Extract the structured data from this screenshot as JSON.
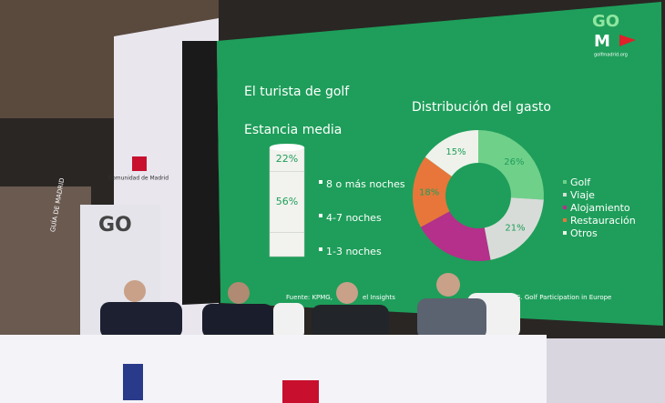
{
  "screen": {
    "title": "El turista de golf",
    "logo_top": "GO",
    "logo_bottom": "M",
    "logo_url": "golfmadrid.org",
    "source": [
      "Fuente: KPMG,",
      "el Insights",
      "G. Golf Participation in Europe"
    ]
  },
  "booth": {
    "sign": "Comunidad de Madrid",
    "banner": "GUÍA DE MADRID",
    "panel_logo": "GO"
  },
  "chart_data": [
    {
      "type": "bar",
      "title": "Estancia media",
      "categories": [
        "8 o más noches",
        "4-7 noches",
        "1-3 noches"
      ],
      "values": [
        22,
        56,
        22
      ],
      "value_labels": [
        "22%",
        "56%",
        null
      ],
      "color": "#f2f2ee"
    },
    {
      "type": "pie",
      "title": "Distribución del gasto",
      "categories": [
        "Golf",
        "Viaje",
        "Alojamiento",
        "Restauración",
        "Otros"
      ],
      "values": [
        26,
        21,
        20,
        18,
        15
      ],
      "value_labels": [
        "26%",
        "21%",
        null,
        "18%",
        "15%"
      ],
      "colors": [
        "#6fd08a",
        "#d8dcd8",
        "#b4308a",
        "#e8763a",
        "#eef2ea"
      ]
    }
  ]
}
